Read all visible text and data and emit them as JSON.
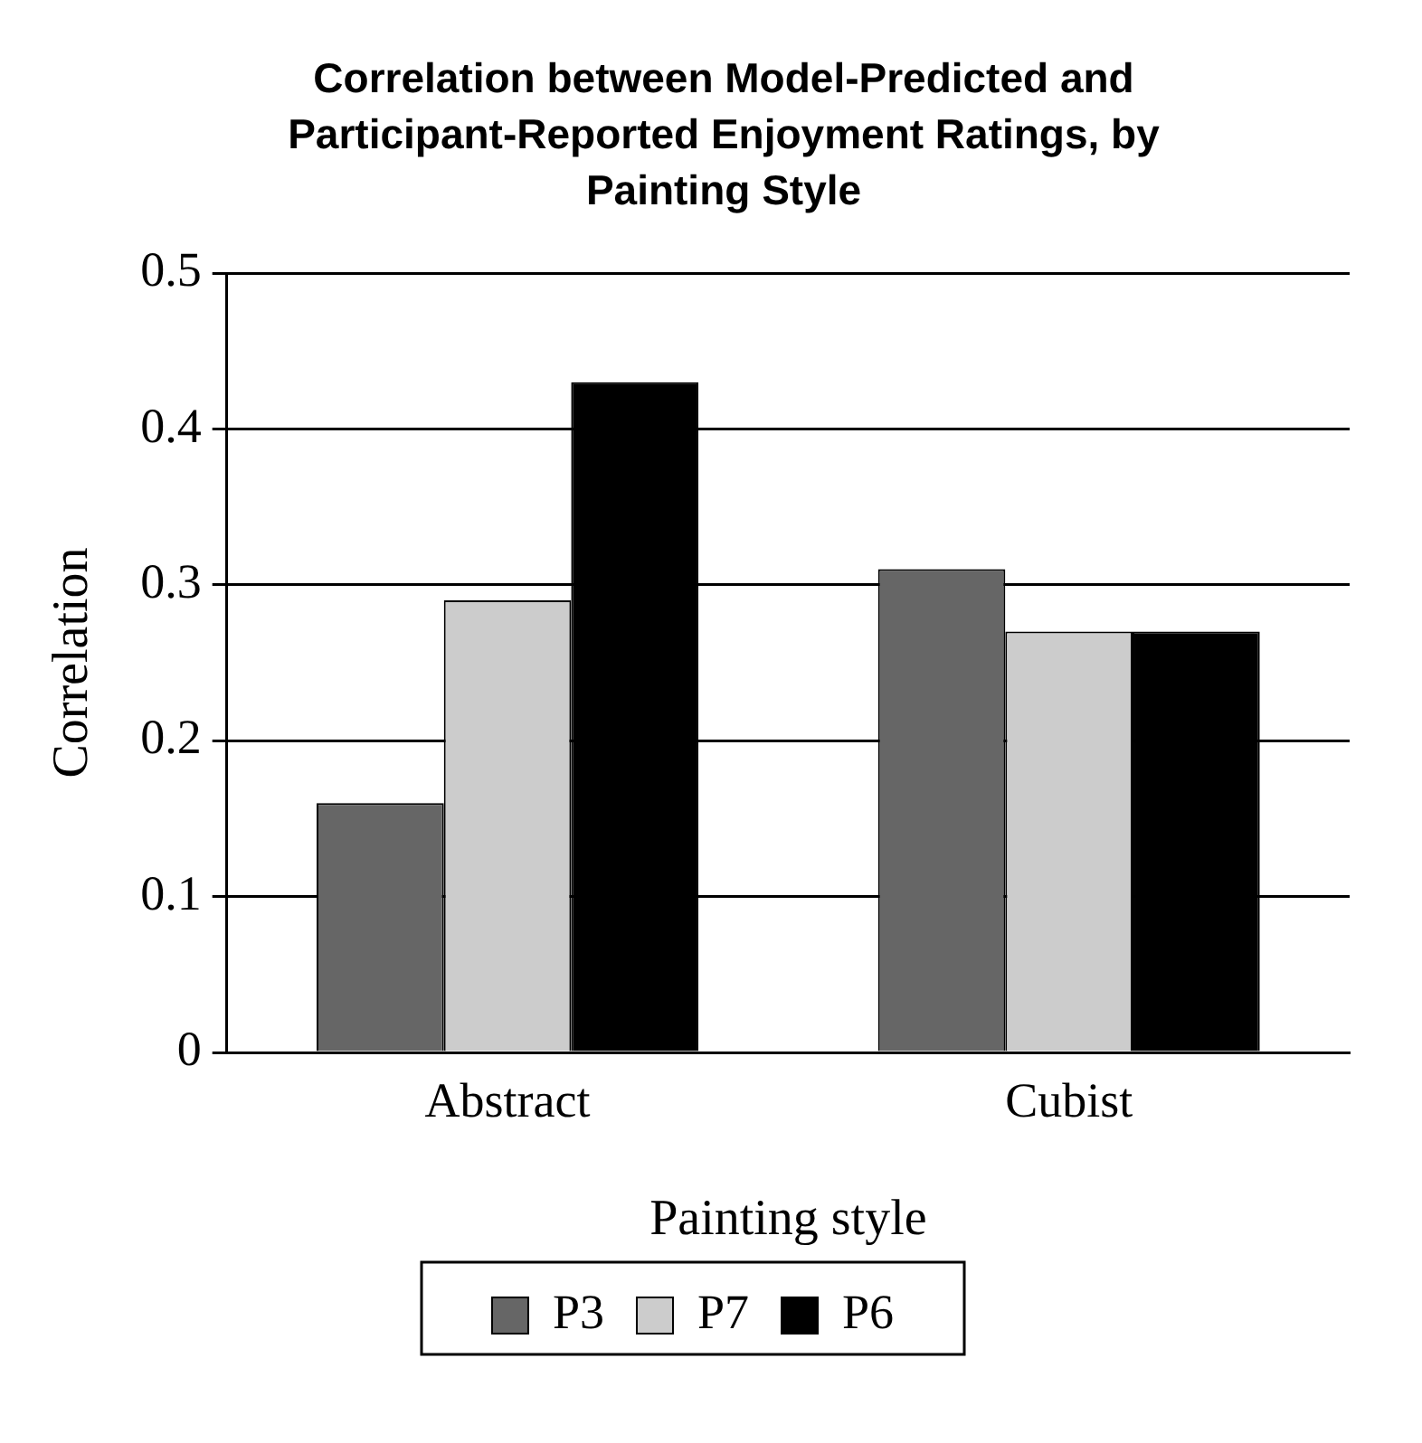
{
  "chart_data": {
    "type": "bar",
    "title": "Correlation between Model-Predicted and Participant-Reported Enjoyment Ratings, by Painting Style",
    "xlabel": "Painting style",
    "ylabel": "Correlation",
    "categories": [
      "Abstract",
      "Cubist"
    ],
    "series": [
      {
        "name": "P3",
        "color": "#666666",
        "values": [
          0.16,
          0.31
        ]
      },
      {
        "name": "P7",
        "color": "#cccccc",
        "values": [
          0.29,
          0.27
        ]
      },
      {
        "name": "P6",
        "color": "#000000",
        "values": [
          0.43,
          0.27
        ]
      }
    ],
    "ylim": [
      0,
      0.5
    ],
    "yticks": [
      0,
      0.1,
      0.2,
      0.3,
      0.4,
      0.5
    ],
    "grid": "y",
    "legend": "bottom"
  }
}
